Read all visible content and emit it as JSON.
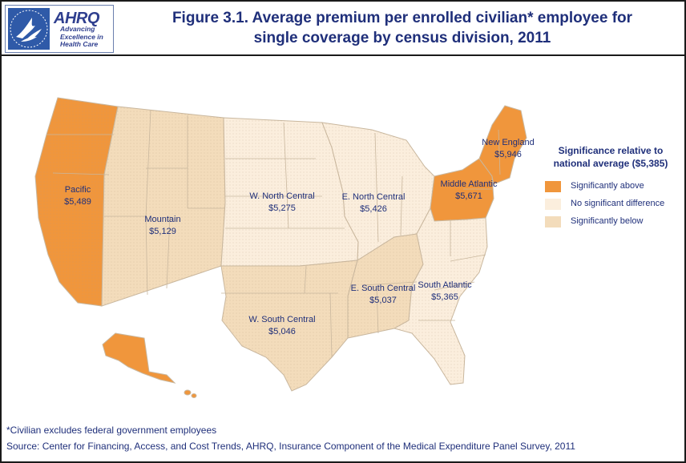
{
  "header": {
    "logo_wordmark": "AHRQ",
    "logo_tagline_1": "Advancing",
    "logo_tagline_2": "Excellence in",
    "logo_tagline_3": "Health Care",
    "title_line1": "Figure 3.1. Average premium per enrolled civilian* employee for",
    "title_line2": "single coverage by census division, 2011"
  },
  "colors": {
    "above": "#f0963c",
    "no_diff": "#fbeedd",
    "below": "#f3dcbb",
    "text": "#1f2f7a",
    "state_border": "#c9b79e"
  },
  "regions": [
    {
      "id": "pacific",
      "name": "Pacific",
      "value": "$5,489",
      "significance": "above"
    },
    {
      "id": "mountain",
      "name": "Mountain",
      "value": "$5,129",
      "significance": "below"
    },
    {
      "id": "wnc",
      "name": "W. North Central",
      "value": "$5,275",
      "significance": "no_diff"
    },
    {
      "id": "enc",
      "name": "E. North Central",
      "value": "$5,426",
      "significance": "no_diff"
    },
    {
      "id": "midatl",
      "name": "Middle Atlantic",
      "value": "$5,671",
      "significance": "above"
    },
    {
      "id": "ne",
      "name": "New England",
      "value": "$5,946",
      "significance": "above"
    },
    {
      "id": "wsc",
      "name": "W. South Central",
      "value": "$5,046",
      "significance": "below"
    },
    {
      "id": "esc",
      "name": "E. South Central",
      "value": "$5,037",
      "significance": "below"
    },
    {
      "id": "satl",
      "name": "South Atlantic",
      "value": "$5,365",
      "significance": "no_diff"
    }
  ],
  "legend": {
    "title_line1": "Significance relative to",
    "title_line2": "national average ($5,385)",
    "items": [
      {
        "label": "Significantly above",
        "key": "above"
      },
      {
        "label": "No significant difference",
        "key": "no_diff"
      },
      {
        "label": "Significantly below",
        "key": "below"
      }
    ]
  },
  "footer": {
    "footnote": "*Civilian excludes federal government employees",
    "source": "Source: Center for Financing, Access, and Cost Trends, AHRQ, Insurance Component of the Medical Expenditure Panel Survey, 2011"
  }
}
